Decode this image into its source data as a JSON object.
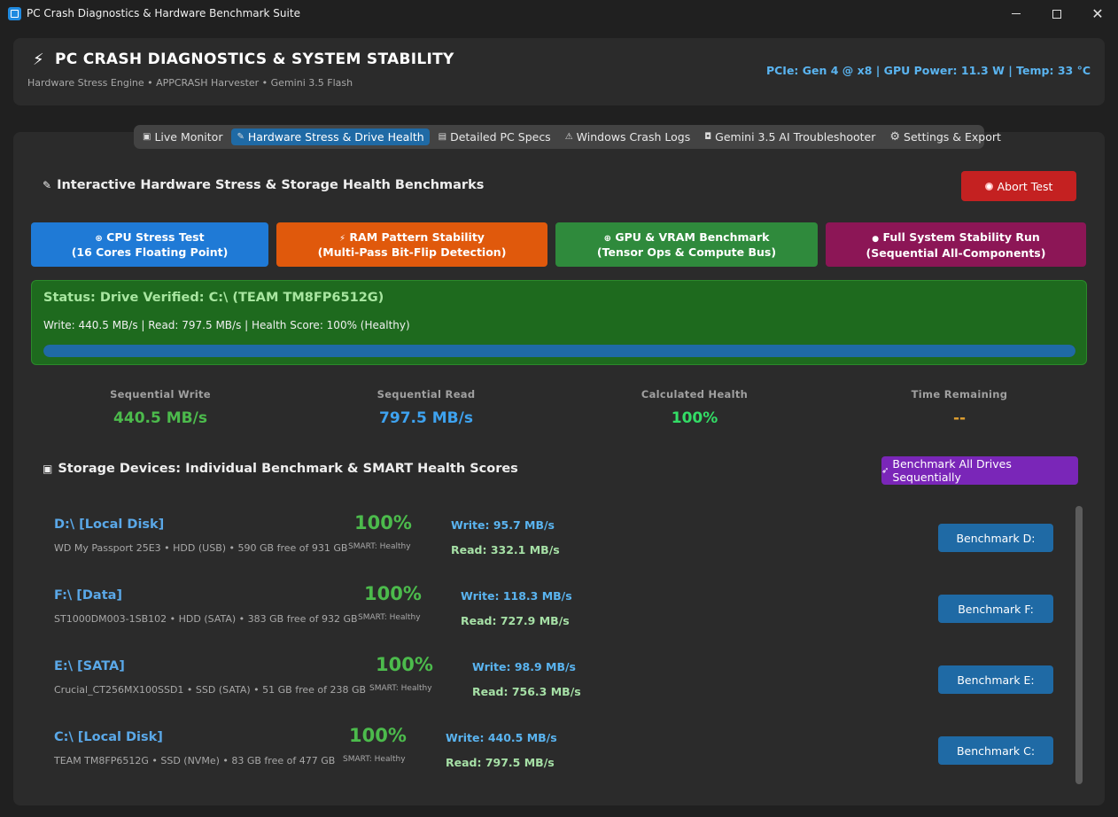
{
  "window": {
    "title": "PC Crash Diagnostics & Hardware Benchmark Suite",
    "controls": {
      "minimize": "–",
      "maximize": "□",
      "close": "✕"
    }
  },
  "header": {
    "title": "PC CRASH DIAGNOSTICS & SYSTEM STABILITY",
    "subtitle": "Hardware Stress Engine • APPCRASH Harvester • Gemini 3.5 Flash",
    "status": "PCIe: Gen 4 @ x8 | GPU Power: 11.3 W | Temp: 33 °C"
  },
  "tabs": [
    {
      "label": "Live Monitor",
      "icon": "monitor-icon",
      "glyph": "▣"
    },
    {
      "label": "Hardware Stress & Drive Health",
      "icon": "wrench-icon",
      "glyph": "✎"
    },
    {
      "label": "Detailed PC Specs",
      "icon": "clipboard-icon",
      "glyph": "▤"
    },
    {
      "label": "Windows Crash Logs",
      "icon": "alert-icon",
      "glyph": "⚠"
    },
    {
      "label": "Gemini 3.5 AI Troubleshooter",
      "icon": "robot-icon",
      "glyph": "◘"
    },
    {
      "label": "Settings & Export",
      "icon": "gear-icon",
      "glyph": "⚙"
    }
  ],
  "stress": {
    "title": "Interactive Hardware Stress & Storage Health Benchmarks",
    "abort_label": "Abort Test",
    "tests": [
      {
        "line1": "CPU Stress Test",
        "line2": "(16 Cores Floating Point)",
        "glyph": "⊛"
      },
      {
        "line1": "RAM Pattern Stability",
        "line2": "(Multi-Pass Bit-Flip Detection)",
        "glyph": "⚡"
      },
      {
        "line1": "GPU & VRAM Benchmark",
        "line2": "(Tensor Ops & Compute Bus)",
        "glyph": "⊕"
      },
      {
        "line1": "Full System Stability Run",
        "line2": "(Sequential All-Components)",
        "glyph": "●"
      }
    ]
  },
  "status": {
    "title": "Status: Drive Verified: C:\\ (TEAM TM8FP6512G)",
    "line": "Write: 440.5 MB/s | Read: 797.5 MB/s | Health Score: 100% (Healthy)",
    "progress": 1.0
  },
  "metrics": [
    {
      "label": "Sequential Write",
      "value": "440.5 MB/s",
      "color": "#4cbb4c"
    },
    {
      "label": "Sequential Read",
      "value": "797.5 MB/s",
      "color": "#3ea3f0"
    },
    {
      "label": "Calculated Health",
      "value": "100%",
      "color": "#33dd66"
    },
    {
      "label": "Time Remaining",
      "value": "--",
      "color": "#e0a030"
    }
  ],
  "storage": {
    "title": "Storage Devices: Individual Benchmark & SMART Health Scores",
    "bench_all_label": "Benchmark All Drives Sequentially",
    "drives": [
      {
        "name": "D:\\ [Local Disk]",
        "desc": "WD My Passport 25E3 • HDD (USB) • 590 GB free of 931 GB",
        "score": "100%",
        "smart": "SMART: Healthy",
        "write": "Write: 95.7 MB/s",
        "read": "Read:  332.1 MB/s",
        "button": "Benchmark D:"
      },
      {
        "name": "F:\\ [Data]",
        "desc": "ST1000DM003-1SB102 • HDD (SATA) • 383 GB free of 932 GB",
        "score": "100%",
        "smart": "SMART: Healthy",
        "write": "Write: 118.3 MB/s",
        "read": "Read:  727.9 MB/s",
        "button": "Benchmark F:"
      },
      {
        "name": "E:\\ [SATA]",
        "desc": "Crucial_CT256MX100SSD1 • SSD (SATA) • 51 GB free of 238 GB",
        "score": "100%",
        "smart": "SMART: Healthy",
        "write": "Write: 98.9 MB/s",
        "read": "Read:  756.3 MB/s",
        "button": "Benchmark E:"
      },
      {
        "name": "C:\\ [Local Disk]",
        "desc": "TEAM TM8FP6512G • SSD (NVMe) • 83 GB free of 477 GB",
        "score": "100%",
        "smart": "SMART: Healthy",
        "write": "Write: 440.5 MB/s",
        "read": "Read:  797.5 MB/s",
        "button": "Benchmark C:"
      }
    ]
  }
}
